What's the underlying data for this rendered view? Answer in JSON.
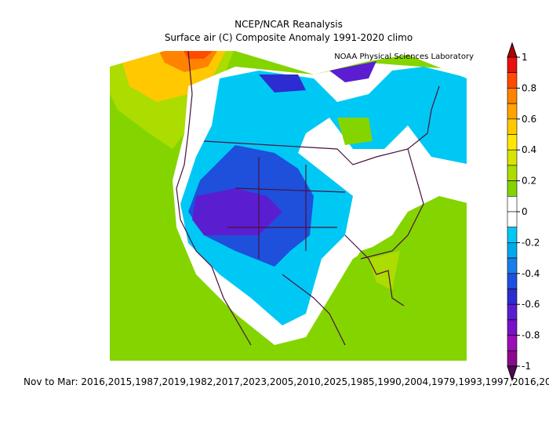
{
  "header": {
    "title": "NCEP/NCAR Reanalysis",
    "subtitle": "Surface air (C) Composite Anomaly 1991-2020 climo",
    "credit": "NOAA Physical Sciences Laboratory"
  },
  "colorbar": {
    "labels": [
      "1",
      "0.8",
      "0.6",
      "0.4",
      "0.2",
      "0",
      "-0.2",
      "-0.4",
      "-0.6",
      "-0.8",
      "-1"
    ],
    "colors": [
      "#b00000",
      "#e81010",
      "#ff4a00",
      "#ff8200",
      "#ffa400",
      "#ffc800",
      "#ffe800",
      "#d8e400",
      "#acdc00",
      "#84d400",
      "#ffffff",
      "#ffffff",
      "#00c8f4",
      "#00a8ec",
      "#1a7ee8",
      "#1e50dc",
      "#2c2cd0",
      "#5a1ed0",
      "#7a10c8",
      "#9a10b4",
      "#8a0a8c",
      "#500a50"
    ]
  },
  "caption": "Nov to Mar: 2016,2015,1987,2019,1982,2017,2023,2005,2010,2025,1985,1990,2004,1979,1993,1997,2016,20"
}
